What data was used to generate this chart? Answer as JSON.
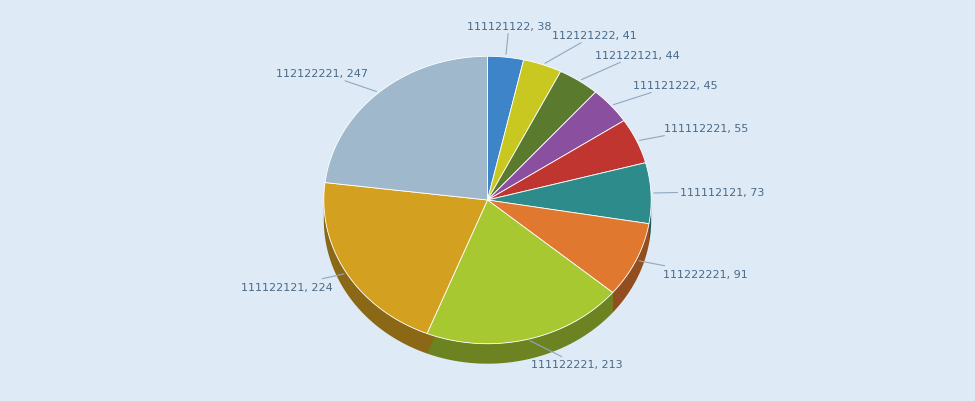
{
  "labels": [
    "111121122",
    "112121222",
    "112122121",
    "111121222",
    "111112221",
    "111112121",
    "111222221",
    "111122221",
    "111122121",
    "112122221"
  ],
  "values": [
    38,
    41,
    44,
    45,
    55,
    73,
    91,
    213,
    224,
    247
  ],
  "colors": [
    "#3d85c8",
    "#c8c820",
    "#5a7a2e",
    "#8b4fa0",
    "#c03530",
    "#2e8b8b",
    "#e07830",
    "#a8c832",
    "#d4a020",
    "#a0b8cc"
  ],
  "background_color": "#deeaf5",
  "label_fontsize": 8.0,
  "label_color": "#4a6a88"
}
